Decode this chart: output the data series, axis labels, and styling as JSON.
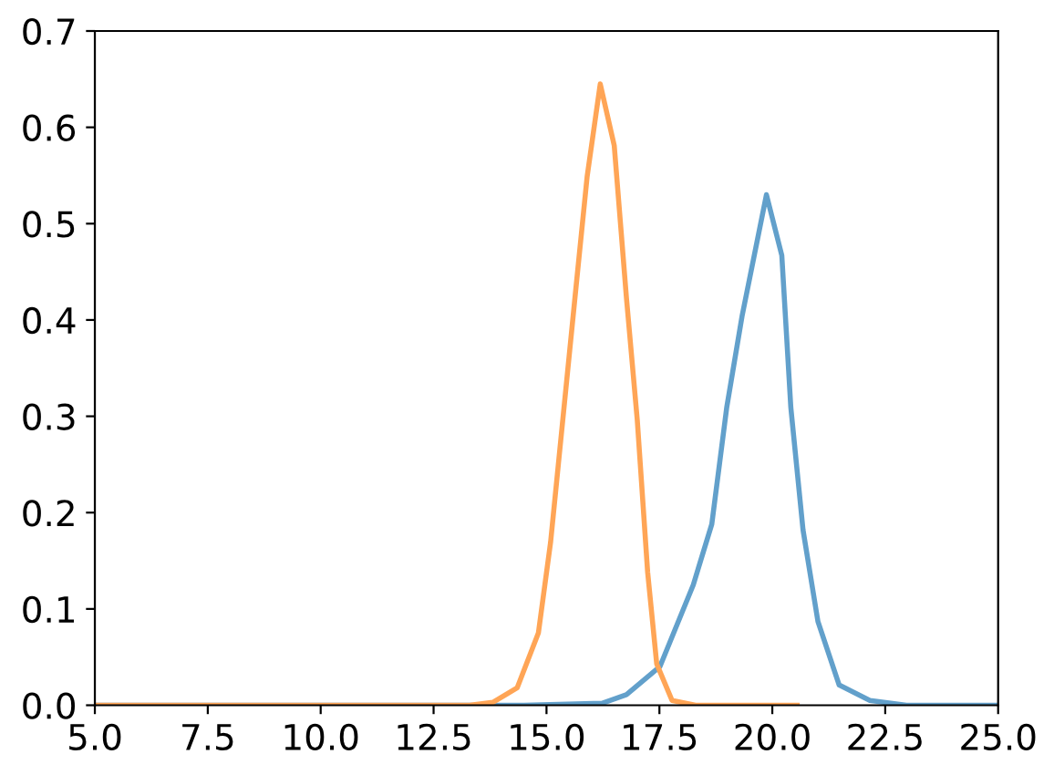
{
  "chart_data": {
    "type": "line",
    "series": [
      {
        "color": "#62a0cb",
        "x": [
          5,
          14.5,
          16.23,
          16.77,
          17.51,
          18.25,
          18.66,
          18.99,
          19.33,
          19.87,
          20.21,
          20.41,
          20.68,
          21.01,
          21.48,
          22.16,
          22.97,
          25
        ],
        "values": [
          0,
          0,
          0.002,
          0.011,
          0.04,
          0.125,
          0.188,
          0.309,
          0.404,
          0.53,
          0.467,
          0.309,
          0.182,
          0.087,
          0.021,
          0.005,
          0,
          0
        ]
      },
      {
        "color": "#ffa556",
        "x": [
          5,
          13.3,
          13.81,
          14.35,
          14.82,
          15.09,
          15.36,
          15.63,
          15.9,
          16.19,
          16.5,
          16.77,
          17.01,
          17.24,
          17.44,
          17.78,
          18.3,
          20.55
        ],
        "values": [
          0,
          0,
          0.003,
          0.018,
          0.075,
          0.169,
          0.296,
          0.423,
          0.549,
          0.645,
          0.581,
          0.423,
          0.296,
          0.138,
          0.043,
          0.005,
          0,
          0
        ]
      }
    ],
    "xlim": [
      5,
      25
    ],
    "xticks": [
      {
        "value": 5,
        "label": "5.0"
      },
      7.5,
      {
        "value": 10,
        "label": "10.0"
      },
      12.5,
      {
        "value": 15,
        "label": "15.0"
      },
      17.5,
      {
        "value": 20,
        "label": "20.0"
      },
      22.5,
      {
        "value": 25,
        "label": "25.0"
      }
    ],
    "ylim": [
      0,
      0.7
    ],
    "yticks": [
      {
        "value": 0,
        "label": "0.0"
      },
      0.1,
      0.2,
      0.3,
      0.4,
      0.5,
      0.6,
      0.7
    ],
    "grid": false,
    "legend": false
  }
}
